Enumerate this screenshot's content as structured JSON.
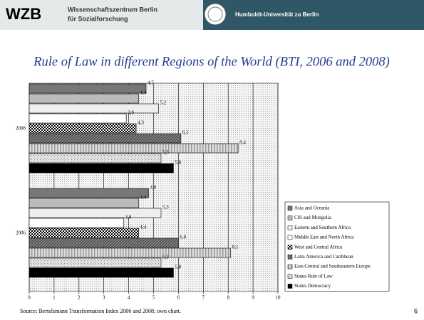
{
  "header": {
    "logo": "WZB",
    "institute_line1": "Wissenschaftszentrum Berlin",
    "institute_line2": "für Sozialforschung",
    "university": "Humboldt-Universität zu Berlin"
  },
  "footer": {
    "source": "Source: Bertelsmann Transformation Index 2006 and 2008; own chart.",
    "page_number": "6"
  },
  "chart_data": {
    "type": "bar",
    "orientation": "horizontal",
    "title": "Rule of Law in different Regions of the World (BTI, 2006 and 2008)",
    "categories": [
      "2008",
      "2006"
    ],
    "series": [
      {
        "name": "Asia and Oceania",
        "color": "#777777",
        "pattern": "solid",
        "values": [
          4.7,
          4.8
        ],
        "value_labels": [
          "4,7",
          "4,8"
        ]
      },
      {
        "name": "CIS and Mongolia",
        "color": "#bbbbbb",
        "pattern": "solid",
        "values": [
          4.4,
          4.4
        ],
        "value_labels": [
          "4,4",
          "4,4"
        ]
      },
      {
        "name": "Eastern and Southern Africa",
        "color": "#eeeeee",
        "pattern": "solid",
        "values": [
          5.2,
          5.3
        ],
        "value_labels": [
          "5,2",
          "5,3"
        ]
      },
      {
        "name": "Middle East and North Africa",
        "color": "#ffffff",
        "pattern": "solid",
        "values": [
          3.9,
          3.8
        ],
        "value_labels": [
          "3,9",
          "3,8"
        ]
      },
      {
        "name": "West and Central Africa",
        "color": "#000000",
        "pattern": "checker",
        "values": [
          4.3,
          4.4
        ],
        "value_labels": [
          "4,3",
          "4,4"
        ]
      },
      {
        "name": "Latin America and Caribbean",
        "color": "#444444",
        "pattern": "hatch",
        "values": [
          6.1,
          6.0
        ],
        "value_labels": [
          "6,1",
          "6,0"
        ]
      },
      {
        "name": "East-Central and Southeastern Europe",
        "color": "#999999",
        "pattern": "stripes",
        "values": [
          8.4,
          8.1
        ],
        "value_labels": [
          "8,4",
          "8,1"
        ]
      },
      {
        "name": "Status Rule of Law",
        "color": "#888888",
        "pattern": "dots",
        "values": [
          5.3,
          5.3
        ],
        "value_labels": [
          "5,3",
          "5,3"
        ]
      },
      {
        "name": "Status Democracy",
        "color": "#000000",
        "pattern": "solid",
        "values": [
          5.8,
          5.8
        ],
        "value_labels": [
          "5,8",
          "5,8"
        ]
      }
    ],
    "xlim": [
      0,
      10
    ],
    "xticks": [
      0,
      1,
      2,
      3,
      4,
      5,
      6,
      7,
      8,
      9,
      10
    ],
    "grid": true,
    "legend": "lower right"
  }
}
